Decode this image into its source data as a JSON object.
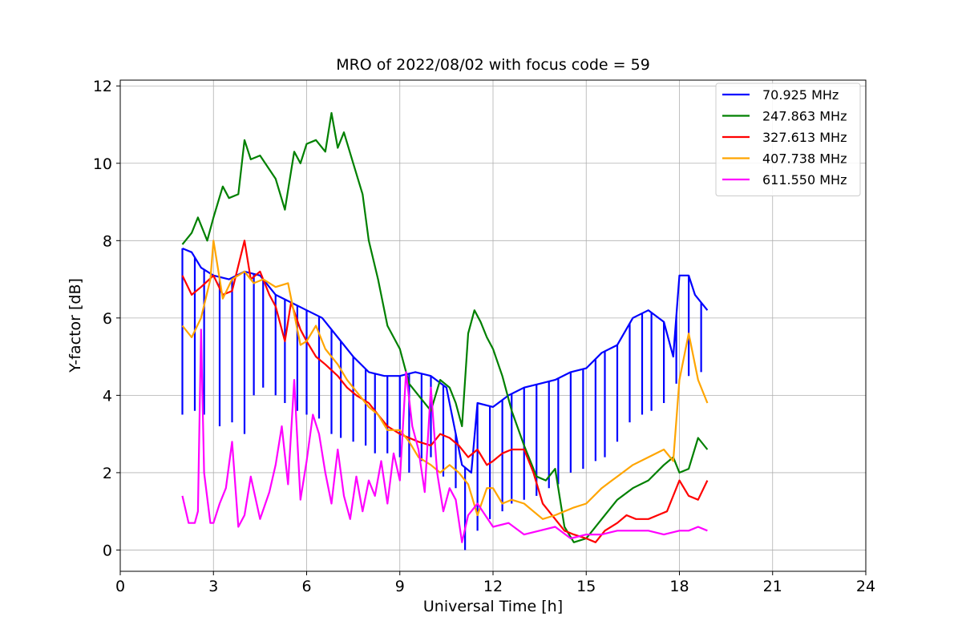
{
  "chart_data": {
    "type": "line",
    "title": "MRO of 2022/08/02 with focus code = 59",
    "xlabel": "Universal Time [h]",
    "ylabel": "Y-factor [dB]",
    "xlim": [
      0,
      24
    ],
    "ylim": [
      -0.55,
      12.15
    ],
    "xticks": [
      0,
      3,
      6,
      9,
      12,
      15,
      18,
      21,
      24
    ],
    "yticks": [
      0,
      2,
      4,
      6,
      8,
      10,
      12
    ],
    "grid": true,
    "legend_position": "top-right",
    "series": [
      {
        "name": " 70.925 MHz",
        "color": "#0000ff",
        "x": [
          2.0,
          2.3,
          2.6,
          3.0,
          3.5,
          4.0,
          4.5,
          5.0,
          5.5,
          6.0,
          6.5,
          7.0,
          7.5,
          8.0,
          8.5,
          9.0,
          9.5,
          10.0,
          10.5,
          11.0,
          11.3,
          11.5,
          12.0,
          12.5,
          13.0,
          13.5,
          14.0,
          14.5,
          15.0,
          15.5,
          16.0,
          16.5,
          17.0,
          17.5,
          17.8,
          18.0,
          18.3,
          18.5,
          18.9
        ],
        "y": [
          7.8,
          7.7,
          7.3,
          7.1,
          7.0,
          7.2,
          7.1,
          6.6,
          6.4,
          6.2,
          6.0,
          5.5,
          5.0,
          4.6,
          4.5,
          4.5,
          4.6,
          4.5,
          4.2,
          2.2,
          2.0,
          3.8,
          3.7,
          4.0,
          4.2,
          4.3,
          4.4,
          4.6,
          4.7,
          5.1,
          5.3,
          6.0,
          6.2,
          5.9,
          5.0,
          7.1,
          7.1,
          6.6,
          6.2
        ],
        "dips": {
          "x": [
            2.0,
            2.4,
            2.7,
            3.2,
            3.6,
            4.0,
            4.3,
            4.6,
            5.0,
            5.3,
            5.7,
            6.0,
            6.4,
            6.8,
            7.1,
            7.5,
            7.9,
            8.2,
            8.6,
            9.0,
            9.3,
            9.7,
            10.0,
            10.4,
            10.8,
            11.1,
            11.5,
            11.9,
            12.3,
            12.6,
            13.0,
            13.4,
            13.8,
            14.1,
            14.5,
            14.9,
            15.3,
            15.6,
            16.0,
            16.4,
            16.8,
            17.1,
            17.5,
            17.9,
            18.3,
            18.7
          ],
          "y": [
            3.5,
            3.6,
            3.5,
            3.2,
            3.3,
            3.0,
            4.0,
            4.2,
            4.0,
            3.8,
            3.6,
            3.5,
            3.4,
            3.0,
            2.9,
            2.8,
            2.7,
            2.5,
            2.5,
            2.4,
            2.0,
            2.3,
            2.4,
            1.9,
            1.6,
            0.0,
            0.5,
            0.8,
            1.0,
            1.2,
            1.3,
            1.4,
            1.6,
            1.7,
            2.0,
            2.1,
            2.3,
            2.4,
            2.8,
            3.3,
            3.5,
            3.6,
            3.8,
            4.3,
            4.5,
            4.6
          ]
        }
      },
      {
        "name": "247.863 MHz",
        "color": "#008000",
        "x": [
          2.0,
          2.3,
          2.5,
          2.8,
          3.0,
          3.3,
          3.5,
          3.8,
          4.0,
          4.2,
          4.5,
          5.0,
          5.3,
          5.6,
          5.8,
          6.0,
          6.3,
          6.6,
          6.8,
          7.0,
          7.2,
          7.5,
          7.8,
          8.0,
          8.3,
          8.6,
          9.0,
          9.3,
          9.6,
          10.0,
          10.3,
          10.6,
          10.8,
          11.0,
          11.2,
          11.4,
          11.6,
          11.8,
          12.0,
          12.3,
          12.6,
          13.0,
          13.4,
          13.7,
          14.0,
          14.3,
          14.6,
          15.0,
          15.5,
          16.0,
          16.5,
          17.0,
          17.5,
          17.8,
          18.0,
          18.3,
          18.6,
          18.9
        ],
        "y": [
          7.9,
          8.2,
          8.6,
          8.0,
          8.6,
          9.4,
          9.1,
          9.2,
          10.6,
          10.1,
          10.2,
          9.6,
          8.8,
          10.3,
          10.0,
          10.5,
          10.6,
          10.3,
          11.3,
          10.4,
          10.8,
          10.0,
          9.2,
          8.0,
          7.0,
          5.8,
          5.2,
          4.3,
          4.0,
          3.6,
          4.4,
          4.2,
          3.8,
          3.2,
          5.6,
          6.2,
          5.9,
          5.5,
          5.2,
          4.5,
          3.6,
          2.7,
          1.9,
          1.8,
          2.1,
          0.6,
          0.2,
          0.3,
          0.8,
          1.3,
          1.6,
          1.8,
          2.2,
          2.4,
          2.0,
          2.1,
          2.9,
          2.6
        ]
      },
      {
        "name": "327.613 MHz",
        "color": "#ff0000",
        "x": [
          2.0,
          2.3,
          2.6,
          3.0,
          3.3,
          3.6,
          4.0,
          4.2,
          4.5,
          4.8,
          5.0,
          5.3,
          5.5,
          5.8,
          6.0,
          6.3,
          6.6,
          7.0,
          7.3,
          7.6,
          8.0,
          8.3,
          8.6,
          9.0,
          9.3,
          9.6,
          10.0,
          10.3,
          10.6,
          10.9,
          11.2,
          11.5,
          11.8,
          12.0,
          12.3,
          12.6,
          13.0,
          13.3,
          13.6,
          14.0,
          14.3,
          14.6,
          15.0,
          15.3,
          15.6,
          16.0,
          16.3,
          16.6,
          17.0,
          17.3,
          17.6,
          18.0,
          18.3,
          18.6,
          18.9
        ],
        "y": [
          7.1,
          6.6,
          6.8,
          7.1,
          6.6,
          6.7,
          8.0,
          7.0,
          7.2,
          6.6,
          6.3,
          5.4,
          6.4,
          5.7,
          5.4,
          5.0,
          4.8,
          4.5,
          4.2,
          4.0,
          3.8,
          3.5,
          3.2,
          3.0,
          2.9,
          2.8,
          2.7,
          3.0,
          2.9,
          2.7,
          2.4,
          2.6,
          2.2,
          2.3,
          2.5,
          2.6,
          2.6,
          2.0,
          1.2,
          0.8,
          0.5,
          0.4,
          0.3,
          0.2,
          0.5,
          0.7,
          0.9,
          0.8,
          0.8,
          0.9,
          1.0,
          1.8,
          1.4,
          1.3,
          1.8
        ]
      },
      {
        "name": "407.738 MHz",
        "color": "#ffa500",
        "x": [
          2.0,
          2.3,
          2.6,
          2.9,
          3.0,
          3.3,
          3.6,
          4.0,
          4.3,
          4.6,
          5.0,
          5.4,
          5.8,
          6.0,
          6.3,
          6.6,
          7.0,
          7.3,
          7.6,
          8.0,
          8.3,
          8.6,
          9.0,
          9.3,
          9.6,
          10.0,
          10.3,
          10.6,
          10.9,
          11.2,
          11.5,
          11.8,
          12.0,
          12.3,
          12.6,
          13.0,
          13.3,
          13.6,
          14.0,
          14.3,
          14.6,
          15.0,
          15.5,
          16.0,
          16.5,
          17.0,
          17.5,
          17.8,
          18.0,
          18.3,
          18.6,
          18.9
        ],
        "y": [
          5.8,
          5.5,
          6.0,
          7.0,
          8.0,
          6.5,
          7.0,
          7.2,
          6.9,
          7.0,
          6.8,
          6.9,
          5.3,
          5.4,
          5.8,
          5.2,
          4.8,
          4.4,
          4.1,
          3.7,
          3.5,
          3.1,
          3.1,
          2.8,
          2.4,
          2.2,
          2.0,
          2.2,
          2.0,
          1.7,
          0.9,
          1.6,
          1.6,
          1.2,
          1.3,
          1.2,
          1.0,
          0.8,
          0.9,
          1.0,
          1.1,
          1.2,
          1.6,
          1.9,
          2.2,
          2.4,
          2.6,
          2.3,
          4.4,
          5.6,
          4.4,
          3.8
        ]
      },
      {
        "name": "611.550 MHz",
        "color": "#ff00ff",
        "x": [
          2.0,
          2.2,
          2.4,
          2.5,
          2.6,
          2.7,
          2.9,
          3.0,
          3.2,
          3.4,
          3.6,
          3.8,
          4.0,
          4.2,
          4.5,
          4.8,
          5.0,
          5.2,
          5.4,
          5.6,
          5.8,
          6.0,
          6.2,
          6.4,
          6.6,
          6.8,
          7.0,
          7.2,
          7.4,
          7.6,
          7.8,
          8.0,
          8.2,
          8.4,
          8.6,
          8.8,
          9.0,
          9.2,
          9.4,
          9.6,
          9.8,
          10.0,
          10.2,
          10.4,
          10.6,
          10.8,
          11.0,
          11.2,
          11.5,
          12.0,
          12.5,
          13.0,
          13.5,
          14.0,
          14.5,
          15.0,
          15.5,
          16.0,
          16.5,
          17.0,
          17.5,
          18.0,
          18.3,
          18.6,
          18.9
        ],
        "y": [
          1.4,
          0.7,
          0.7,
          1.0,
          5.7,
          2.0,
          0.7,
          0.7,
          1.2,
          1.6,
          2.8,
          0.6,
          0.9,
          1.9,
          0.8,
          1.5,
          2.2,
          3.2,
          1.7,
          4.4,
          1.3,
          2.3,
          3.5,
          3.0,
          2.0,
          1.2,
          2.6,
          1.4,
          0.8,
          1.9,
          1.0,
          1.8,
          1.4,
          2.3,
          1.2,
          2.5,
          1.8,
          4.6,
          3.2,
          2.6,
          1.5,
          4.2,
          2.0,
          1.0,
          1.6,
          1.3,
          0.2,
          0.9,
          1.2,
          0.6,
          0.7,
          0.4,
          0.5,
          0.6,
          0.3,
          0.4,
          0.4,
          0.5,
          0.5,
          0.5,
          0.4,
          0.5,
          0.5,
          0.6,
          0.5
        ]
      }
    ]
  }
}
